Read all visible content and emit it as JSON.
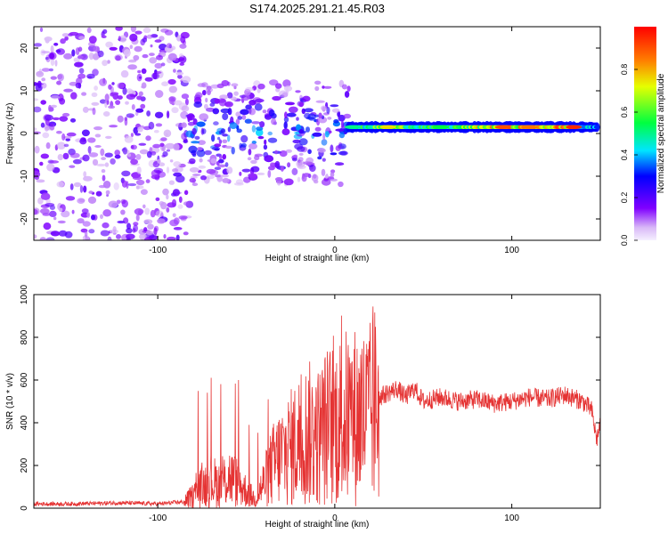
{
  "title": "S174.2025.291.21.45.R03",
  "chart_data": [
    {
      "type": "heatmap",
      "xlabel": "Height of straight line (km)",
      "ylabel": "Frequency (Hz)",
      "xlim": [
        -170,
        150
      ],
      "ylim": [
        -25,
        25
      ],
      "x_ticks": [
        -100,
        0,
        100
      ],
      "y_ticks": [
        -20,
        -10,
        0,
        10,
        20
      ],
      "colorbar": {
        "label": "Normalized spectral amplitude",
        "range": [
          0.0,
          1.0
        ],
        "ticks": [
          0.0,
          0.2,
          0.4,
          0.6,
          0.8
        ]
      },
      "ridge": {
        "x_start": 8,
        "x_end": 148,
        "frequency": 1.5,
        "peak_amplitudes": [
          {
            "x": 10,
            "amp": 0.5
          },
          {
            "x": 30,
            "amp": 0.75
          },
          {
            "x": 60,
            "amp": 0.55
          },
          {
            "x": 95,
            "amp": 0.9
          },
          {
            "x": 110,
            "amp": 0.85
          },
          {
            "x": 135,
            "amp": 0.95
          }
        ]
      },
      "noise_regions": [
        {
          "x_range": [
            -170,
            -82
          ],
          "freq_range": [
            -25,
            25
          ],
          "density": "high",
          "amp": 0.15
        },
        {
          "x_range": [
            -82,
            8
          ],
          "freq_range": [
            -12,
            12
          ],
          "density": "medium",
          "amp": 0.25
        }
      ]
    },
    {
      "type": "line",
      "xlabel": "Height of straight line (km)",
      "ylabel": "SNR (10 * v/v)",
      "xlim": [
        -170,
        150
      ],
      "ylim": [
        0,
        1000
      ],
      "x_ticks": [
        -100,
        0,
        100
      ],
      "y_ticks": [
        0,
        200,
        400,
        600,
        800,
        1000
      ],
      "color": "#e53333",
      "series": [
        {
          "name": "SNR",
          "x": [
            -170,
            -150,
            -120,
            -100,
            -85,
            -80,
            -75,
            -70,
            -65,
            -60,
            -55,
            -50,
            -45,
            -40,
            -35,
            -30,
            -25,
            -20,
            -15,
            -10,
            -5,
            0,
            5,
            10,
            15,
            20,
            25,
            30,
            35,
            40,
            45,
            50,
            60,
            70,
            80,
            90,
            100,
            110,
            120,
            130,
            140,
            145,
            148,
            150
          ],
          "values": [
            20,
            20,
            25,
            20,
            30,
            60,
            100,
            130,
            110,
            150,
            120,
            80,
            40,
            120,
            200,
            250,
            280,
            320,
            350,
            330,
            380,
            400,
            420,
            430,
            430,
            440,
            520,
            540,
            560,
            520,
            560,
            500,
            520,
            500,
            510,
            490,
            500,
            520,
            510,
            530,
            500,
            460,
            320,
            400
          ]
        }
      ]
    }
  ]
}
